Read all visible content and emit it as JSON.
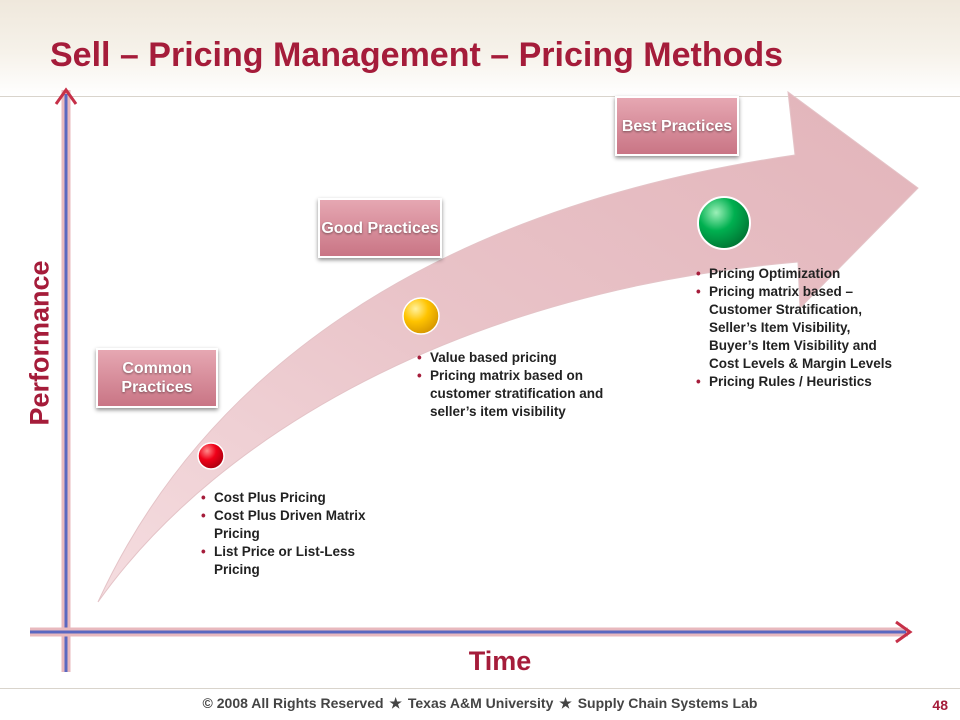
{
  "title": "Sell – Pricing Management – Pricing Methods",
  "axes": {
    "y_label": "Performance",
    "x_label": "Time"
  },
  "colors": {
    "title": "#a51c3a",
    "arrow": "#e7bfc4",
    "axis": "#6b78c4",
    "axis_glow": "#d9a0a6"
  },
  "stages": [
    {
      "badge": "Common Practices",
      "marker_color": "#e8001a",
      "bullets": [
        "Cost Plus Pricing",
        "Cost Plus Driven Matrix Pricing",
        "List Price or List-Less Pricing"
      ]
    },
    {
      "badge": "Good Practices",
      "marker_color": "#ffc000",
      "bullets": [
        "Value based pricing",
        "Pricing matrix based on customer stratification and seller’s item visibility"
      ]
    },
    {
      "badge": "Best Practices",
      "marker_color": "#00a550",
      "bullets": [
        "Pricing Optimization",
        "Pricing matrix based – Customer Stratification, Seller’s Item Visibility, Buyer’s Item Visibility and Cost Levels & Margin Levels",
        "Pricing Rules / Heuristics"
      ]
    }
  ],
  "footer": {
    "copyright": "© 2008 All Rights Reserved",
    "university": "Texas A&M University",
    "lab": "Supply Chain Systems Lab",
    "page_number": "48"
  }
}
